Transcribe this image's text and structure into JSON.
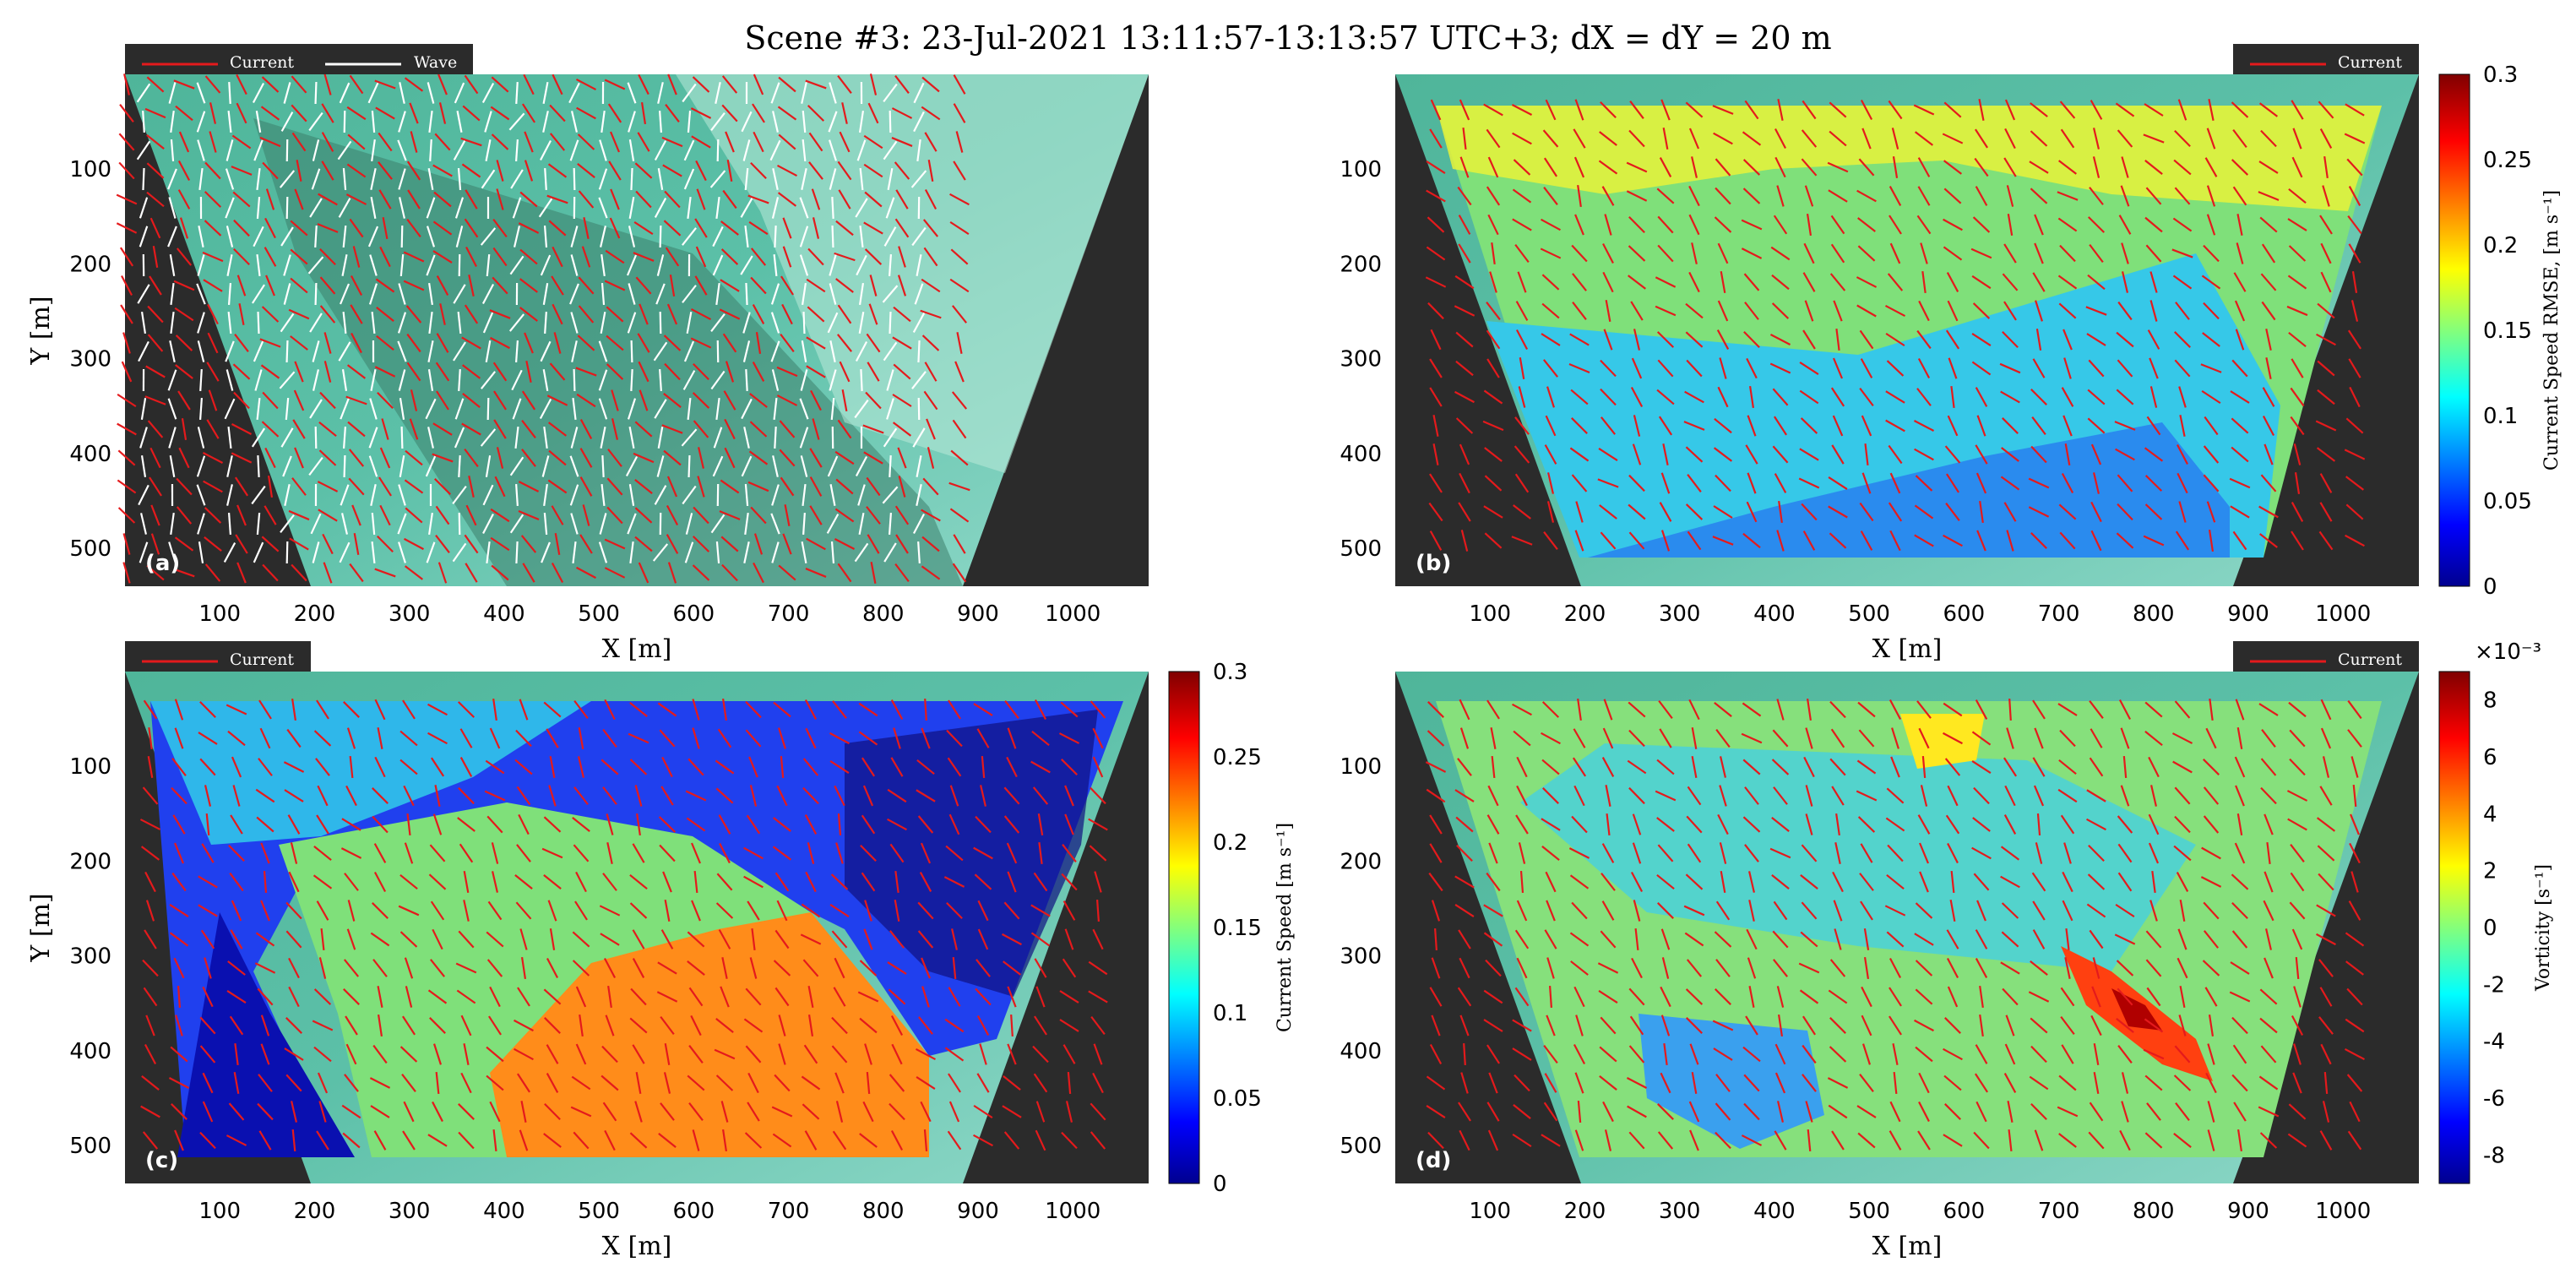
{
  "title": "Scene #3: 23-Jul-2021 13:11:57-13:13:57 UTC+3; dX = dY = 20 m",
  "chart_data": [
    {
      "type": "heatmap",
      "panel": "(a)",
      "xlabel": "X [m]",
      "ylabel": "Y [m]",
      "xlim": [
        0,
        1080
      ],
      "ylim": [
        0,
        540
      ],
      "xticks": [
        "100",
        "200",
        "300",
        "400",
        "500",
        "600",
        "700",
        "800",
        "900",
        "1000"
      ],
      "yticks": [
        "100",
        "200",
        "300",
        "400",
        "500"
      ],
      "legend": [
        "Current",
        "Wave"
      ],
      "field": "none",
      "description_series": [
        {
          "name": "Current",
          "color": "#e41a1c"
        },
        {
          "name": "Wave",
          "color": "#ffffff"
        }
      ]
    },
    {
      "type": "heatmap",
      "panel": "(b)",
      "xlabel": "X [m]",
      "ylabel": "",
      "xlim": [
        0,
        1080
      ],
      "ylim": [
        0,
        540
      ],
      "xticks": [
        "100",
        "200",
        "300",
        "400",
        "500",
        "600",
        "700",
        "800",
        "900",
        "1000"
      ],
      "yticks": [
        "100",
        "200",
        "300",
        "400",
        "500"
      ],
      "legend": [
        "Current"
      ],
      "field": "rmse",
      "colorbar": {
        "label": "Current Speed RMSE, [m s⁻¹]",
        "range": [
          0,
          0.3
        ],
        "ticks": [
          "0",
          "0.05",
          "0.1",
          "0.15",
          "0.2",
          "0.25",
          "0.3"
        ]
      }
    },
    {
      "type": "heatmap",
      "panel": "(c)",
      "xlabel": "X [m]",
      "ylabel": "Y [m]",
      "xlim": [
        0,
        1080
      ],
      "ylim": [
        0,
        540
      ],
      "xticks": [
        "100",
        "200",
        "300",
        "400",
        "500",
        "600",
        "700",
        "800",
        "900",
        "1000"
      ],
      "yticks": [
        "100",
        "200",
        "300",
        "400",
        "500"
      ],
      "legend": [
        "Current"
      ],
      "field": "speed",
      "colorbar": {
        "label": "Current Speed [m s⁻¹]",
        "range": [
          0,
          0.3
        ],
        "ticks": [
          "0",
          "0.05",
          "0.1",
          "0.15",
          "0.2",
          "0.25",
          "0.3"
        ]
      }
    },
    {
      "type": "heatmap",
      "panel": "(d)",
      "xlabel": "X [m]",
      "ylabel": "",
      "xlim": [
        0,
        1080
      ],
      "ylim": [
        0,
        540
      ],
      "xticks": [
        "100",
        "200",
        "300",
        "400",
        "500",
        "600",
        "700",
        "800",
        "900",
        "1000"
      ],
      "yticks": [
        "100",
        "200",
        "300",
        "400",
        "500"
      ],
      "legend": [
        "Current"
      ],
      "field": "vorticity",
      "colorbar": {
        "label": "Vorticity [s⁻¹]",
        "range": [
          -9,
          9
        ],
        "exponent": "×10⁻³",
        "ticks": [
          "-8",
          "-6",
          "-4",
          "-2",
          "0",
          "2",
          "4",
          "6",
          "8"
        ]
      }
    }
  ]
}
